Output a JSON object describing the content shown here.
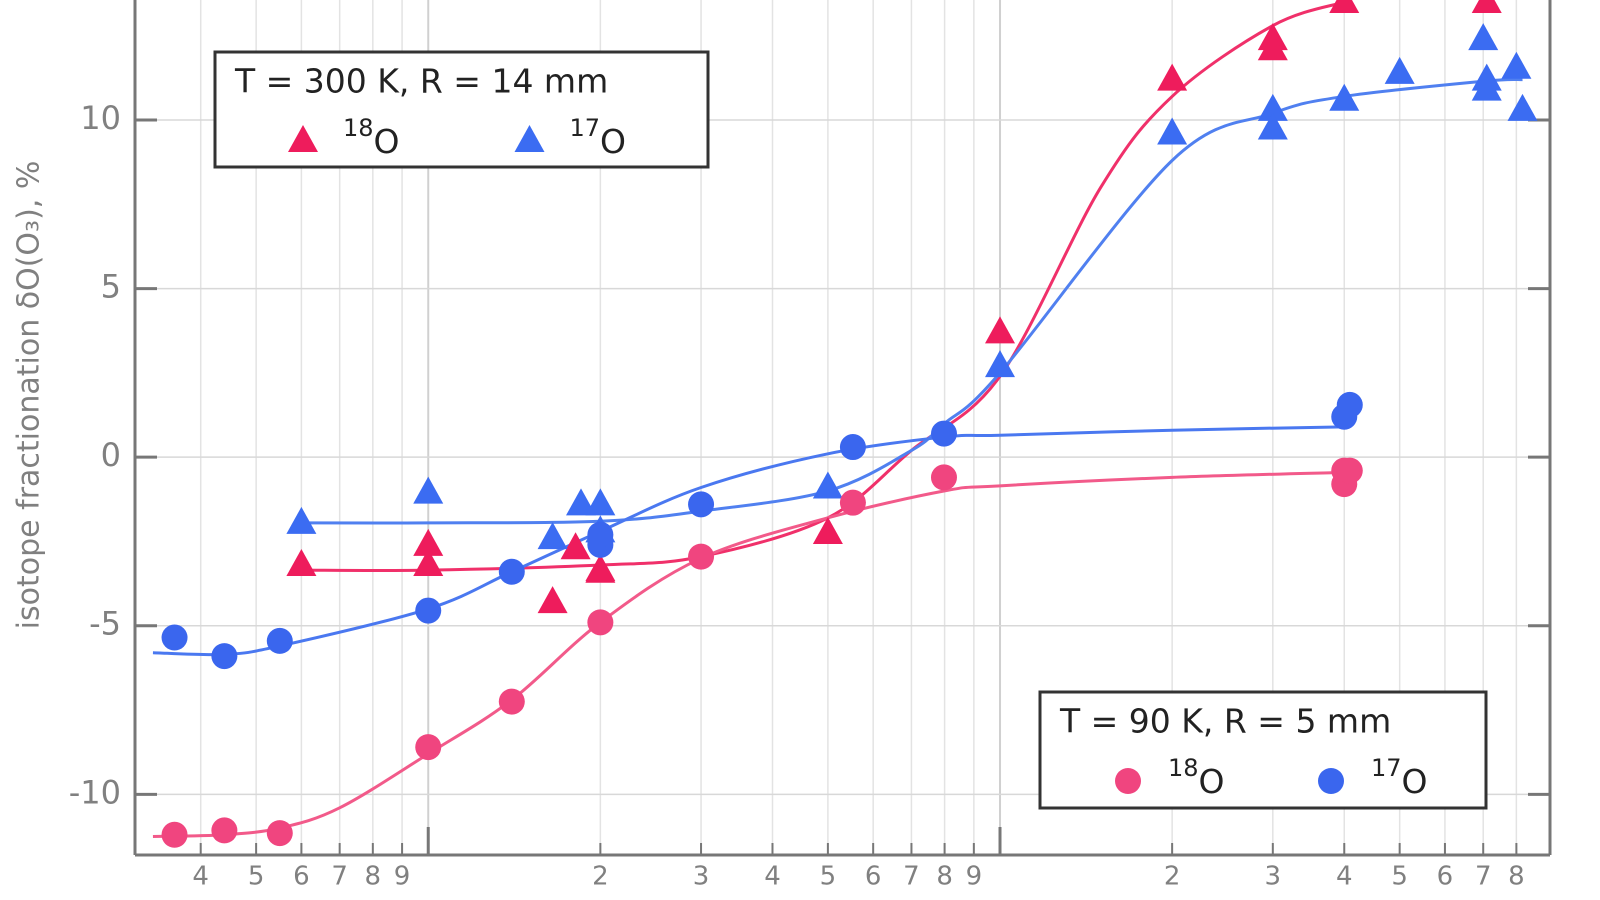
{
  "chart_data": {
    "type": "scatter",
    "y_label": "isotope fractionation δO(O₃), %",
    "x_log": true,
    "xlim": [
      0.307,
      91.6
    ],
    "ylim": [
      -11.8,
      13.56
    ],
    "xticks_major": [
      1,
      10
    ],
    "xticks": [
      {
        "value": 0.4,
        "label": "4"
      },
      {
        "value": 0.5,
        "label": "5"
      },
      {
        "value": 0.6,
        "label": "6"
      },
      {
        "value": 0.7,
        "label": "7"
      },
      {
        "value": 0.8,
        "label": "8"
      },
      {
        "value": 0.9,
        "label": "9"
      },
      2,
      3,
      4,
      5,
      6,
      7,
      8,
      9,
      {
        "value": 20,
        "label": "2"
      },
      {
        "value": 30,
        "label": "3"
      },
      {
        "value": 40,
        "label": "4"
      },
      {
        "value": 50,
        "label": "5"
      },
      {
        "value": 60,
        "label": "6"
      },
      {
        "value": 70,
        "label": "7"
      },
      {
        "value": 80,
        "label": "8"
      }
    ],
    "yticks": [
      -10,
      -5,
      0,
      5,
      10
    ],
    "grid": true,
    "legends": [
      {
        "title": "T = 300 K,   R = 14 mm",
        "corner": "upper left"
      },
      {
        "title": "T = 90 K,   R = 5 mm",
        "corner": "lower right"
      }
    ],
    "series": [
      {
        "name": "O",
        "isotope": "18",
        "legend": 0,
        "marker": "triangle",
        "color": "#ee1c5c",
        "x": [
          0.6,
          1,
          1,
          1.65,
          1.81,
          2,
          2,
          5,
          10,
          20,
          30,
          30,
          40,
          71
        ],
        "values": [
          -3.2,
          -2.6,
          -3.2,
          -4.3,
          -2.7,
          -3.35,
          -3.4,
          -2.25,
          3.7,
          11.2,
          12.4,
          12.1,
          13.5,
          13.5
        ]
      },
      {
        "name": "O",
        "isotope": "17",
        "legend": 0,
        "marker": "triangle",
        "color": "#3b6cf2",
        "x": [
          0.6,
          1,
          1.65,
          1.85,
          2,
          2,
          5,
          10,
          20,
          30,
          30,
          40,
          50,
          70,
          71,
          71,
          80,
          82
        ],
        "values": [
          -1.95,
          -1.05,
          -2.4,
          -1.4,
          -1.4,
          -2.2,
          -0.9,
          2.7,
          9.6,
          10.3,
          9.75,
          10.6,
          11.4,
          12.4,
          11.2,
          10.9,
          11.55,
          10.3
        ]
      },
      {
        "name": "O",
        "isotope": "18",
        "legend": 1,
        "marker": "circle",
        "color": "#f0457f",
        "x": [
          0.36,
          0.44,
          0.55,
          1,
          1.4,
          2,
          3,
          5.53,
          7.98,
          40,
          40,
          40.9
        ],
        "values": [
          -11.2,
          -11.07,
          -11.15,
          -8.6,
          -7.25,
          -4.9,
          -2.95,
          -1.35,
          -0.6,
          -0.4,
          -0.8,
          -0.4
        ]
      },
      {
        "name": "O",
        "isotope": "17",
        "legend": 1,
        "marker": "circle",
        "color": "#3a66ee",
        "x": [
          0.36,
          0.44,
          0.55,
          1,
          1.4,
          2,
          2,
          3,
          5.53,
          7.98,
          40,
          40.9
        ],
        "values": [
          -5.35,
          -5.9,
          -5.45,
          -4.55,
          -3.4,
          -2.6,
          -2.3,
          -1.4,
          0.3,
          0.7,
          1.2,
          1.55
        ]
      }
    ],
    "fits": [
      {
        "color": "#f0306a",
        "x": [
          0.6,
          1,
          2,
          3,
          5,
          7,
          10,
          15,
          20,
          30,
          40
        ],
        "values": [
          -3.35,
          -3.35,
          -3.2,
          -2.95,
          -1.8,
          0.2,
          2.4,
          8.0,
          10.7,
          12.8,
          13.5
        ]
      },
      {
        "color": "#5080f0",
        "x": [
          0.6,
          1,
          2,
          3,
          5,
          7,
          8,
          10,
          20,
          30,
          40,
          70,
          82
        ],
        "values": [
          -1.95,
          -1.95,
          -1.9,
          -1.6,
          -1.0,
          0.2,
          1.0,
          2.5,
          8.8,
          10.2,
          10.7,
          11.15,
          11.2
        ]
      },
      {
        "color": "#f25a8a",
        "x": [
          0.33,
          0.44,
          0.55,
          0.7,
          1,
          1.4,
          2,
          3,
          5,
          8,
          10,
          20,
          40
        ],
        "values": [
          -11.25,
          -11.2,
          -11.0,
          -10.4,
          -8.8,
          -7.2,
          -4.9,
          -3.0,
          -1.8,
          -1.0,
          -0.85,
          -0.6,
          -0.45
        ]
      },
      {
        "color": "#4a78f0",
        "x": [
          0.33,
          0.44,
          0.55,
          1,
          1.4,
          2,
          3,
          5,
          8,
          10,
          20,
          40
        ],
        "values": [
          -5.8,
          -5.85,
          -5.6,
          -4.5,
          -3.4,
          -2.2,
          -0.9,
          0.1,
          0.6,
          0.65,
          0.8,
          0.9
        ]
      }
    ]
  }
}
